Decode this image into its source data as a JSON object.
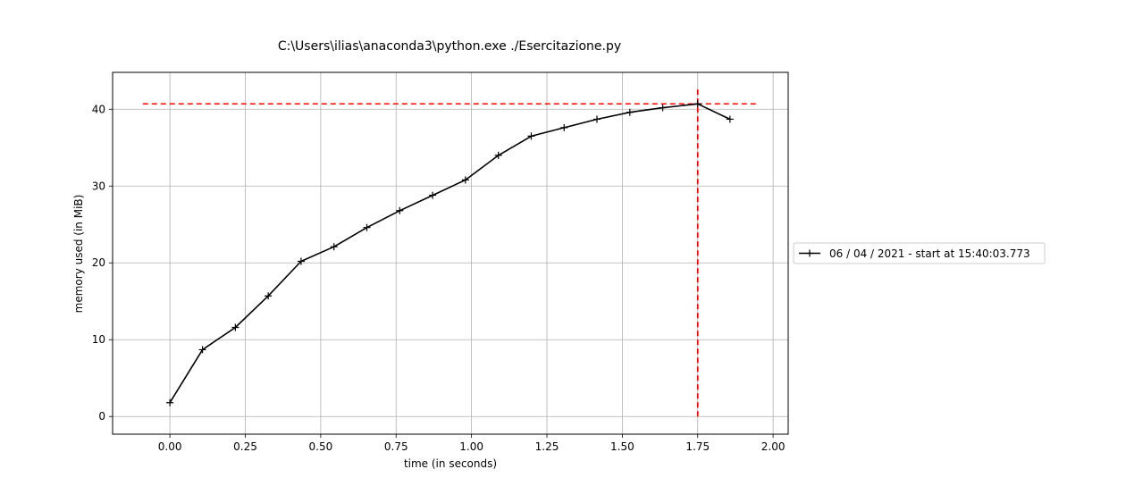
{
  "chart_data": {
    "type": "line",
    "title": "C:\\Users\\ilias\\anaconda3\\python.exe ./Esercitazione.py",
    "xlabel": "time (in seconds)",
    "ylabel": "memory used (in MiB)",
    "xlim": [
      -0.19,
      2.05
    ],
    "ylim": [
      -2.3,
      44.8
    ],
    "xticks": [
      0.0,
      0.25,
      0.5,
      0.75,
      1.0,
      1.25,
      1.5,
      1.75,
      2.0
    ],
    "xtick_labels": [
      "0.00",
      "0.25",
      "0.50",
      "0.75",
      "1.00",
      "1.25",
      "1.50",
      "1.75",
      "2.00"
    ],
    "yticks": [
      0,
      10,
      20,
      30,
      40
    ],
    "ytick_labels": [
      "0",
      "10",
      "20",
      "30",
      "40"
    ],
    "grid": true,
    "legend_position": "right",
    "series": [
      {
        "name": "06 / 04 / 2021 - start at 15:40:03.773",
        "color": "#000000",
        "marker": "+",
        "x": [
          0.0,
          0.108,
          0.217,
          0.326,
          0.435,
          0.544,
          0.653,
          0.762,
          0.871,
          0.98,
          1.089,
          1.198,
          1.307,
          1.416,
          1.525,
          1.634,
          1.75,
          1.857
        ],
        "y": [
          1.8,
          8.7,
          11.6,
          15.7,
          20.2,
          22.1,
          24.6,
          26.8,
          28.8,
          30.8,
          34.0,
          36.5,
          37.6,
          38.7,
          39.6,
          40.2,
          40.7,
          38.7
        ]
      }
    ],
    "reference_lines": [
      {
        "orientation": "horizontal",
        "value": 40.7,
        "from": -0.09,
        "to": 1.95,
        "color": "#ff0000",
        "style": "dashed"
      },
      {
        "orientation": "vertical",
        "value": 1.75,
        "from": 0.0,
        "to": 42.8,
        "color": "#ff0000",
        "style": "dashed"
      }
    ]
  }
}
